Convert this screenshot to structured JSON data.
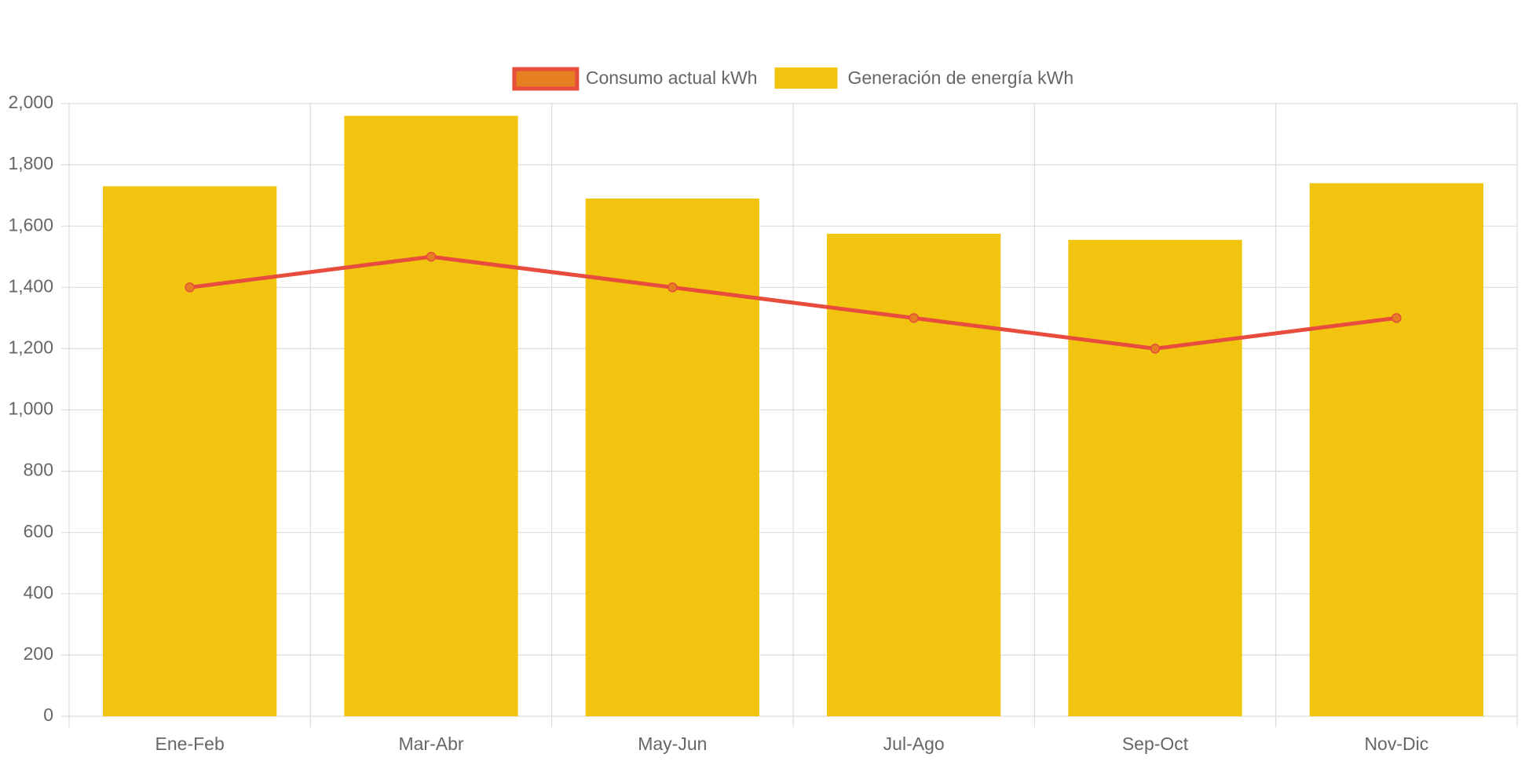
{
  "chart_data": {
    "type": "bar",
    "categories": [
      "Ene-Feb",
      "Mar-Abr",
      "May-Jun",
      "Jul-Ago",
      "Sep-Oct",
      "Nov-Dic"
    ],
    "series": [
      {
        "name": "Consumo actual kWh",
        "type": "line",
        "color": "#e74c3c",
        "point_color": "#e67e22",
        "values": [
          1400,
          1500,
          1400,
          1300,
          1200,
          1300
        ]
      },
      {
        "name": "Generación de energía kWh",
        "type": "bar",
        "color": "#f1c40f",
        "values": [
          1730,
          1960,
          1690,
          1575,
          1555,
          1740
        ]
      }
    ],
    "ylim": [
      0,
      2000
    ],
    "yticks": [
      0,
      200,
      400,
      600,
      800,
      {
        "value": 1000,
        "label": "1,000"
      },
      {
        "value": 1200,
        "label": "1,200"
      },
      {
        "value": 1400,
        "label": "1,400"
      },
      {
        "value": 1600,
        "label": "1,600"
      },
      {
        "value": 1800,
        "label": "1,800"
      },
      {
        "value": 2000,
        "label": "2,000"
      }
    ],
    "grid": true,
    "legend": "top"
  }
}
